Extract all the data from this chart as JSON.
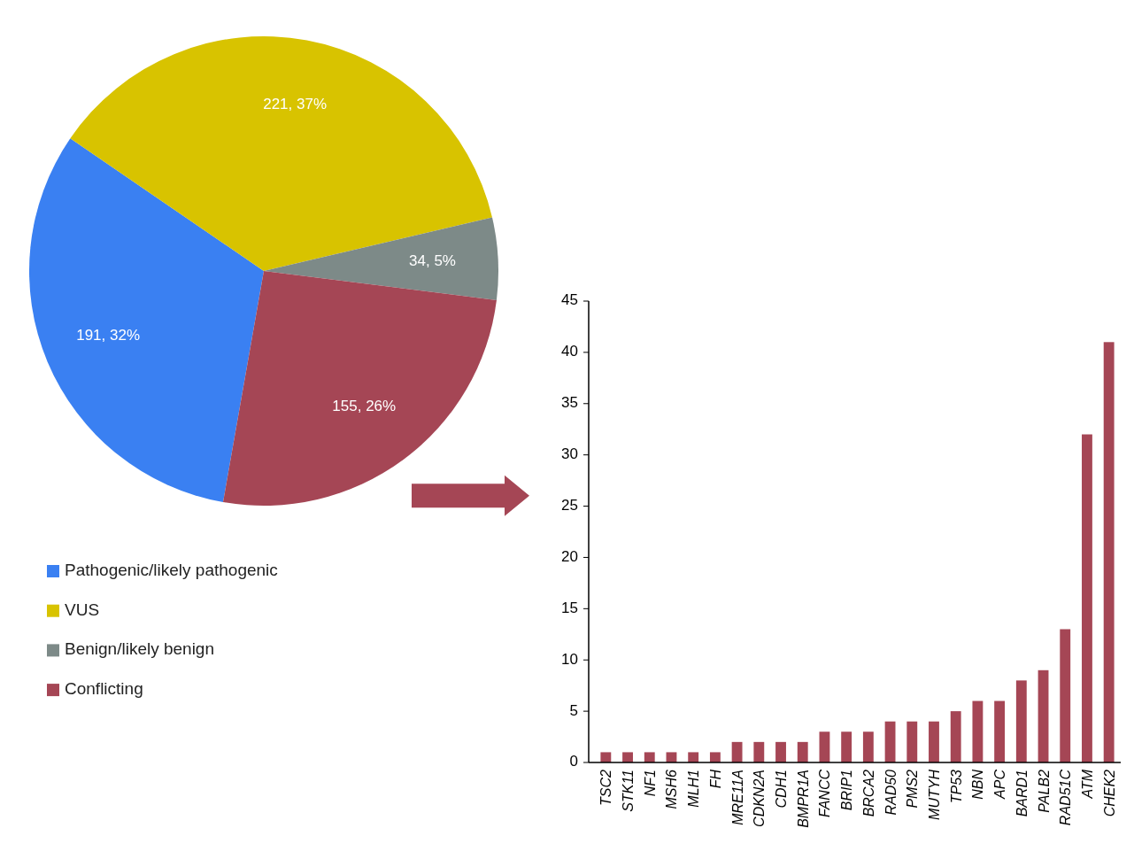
{
  "chart_data": [
    {
      "type": "pie",
      "categories": [
        "Pathogenic/likely pathogenic",
        "VUS",
        "Benign/likely benign",
        "Conflicting"
      ],
      "values": [
        191,
        221,
        34,
        155
      ],
      "colors": [
        "#3a80f2",
        "#d8c300",
        "#7d8a88",
        "#a54655"
      ],
      "value_labels": [
        "191, 32%",
        "221, 37%",
        "34, 5%",
        "155, 26%"
      ],
      "legend": "bottom"
    },
    {
      "type": "bar",
      "categories": [
        "TSC2",
        "STK11",
        "NF1",
        "MSH6",
        "MLH1",
        "FH",
        "MRE11A",
        "CDKN2A",
        "CDH1",
        "BMPR1A",
        "FANCC",
        "BRIP1",
        "BRCA2",
        "RAD50",
        "PMS2",
        "MUTYH",
        "TP53",
        "NBN",
        "APC",
        "BARD1",
        "PALB2",
        "RAD51C",
        "ATM",
        "CHEK2"
      ],
      "values": [
        1,
        1,
        1,
        1,
        1,
        1,
        2,
        2,
        2,
        2,
        3,
        3,
        3,
        4,
        4,
        4,
        5,
        6,
        6,
        8,
        9,
        13,
        32,
        41
      ],
      "color": "#a54655",
      "ylim": [
        0,
        45
      ],
      "yticks": [
        0,
        5,
        10,
        15,
        20,
        25,
        30,
        35,
        40,
        45
      ]
    }
  ]
}
